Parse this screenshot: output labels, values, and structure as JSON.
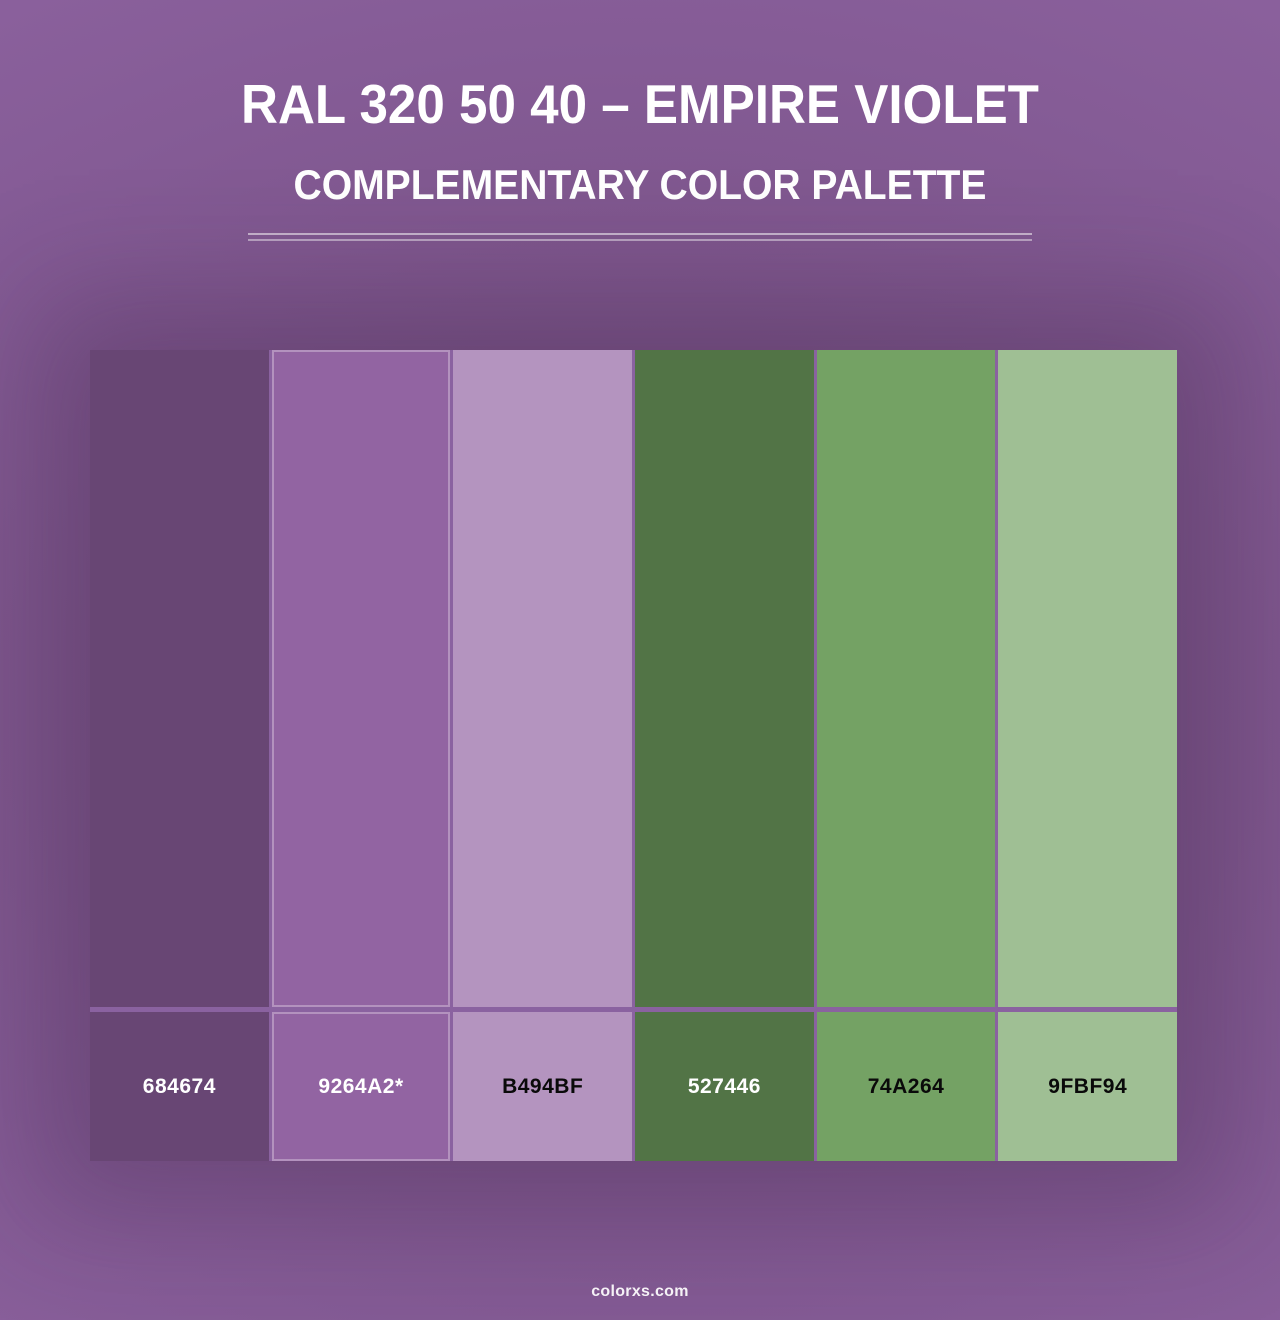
{
  "header": {
    "title": "RAL 320 50 40 – EMPIRE VIOLET",
    "subtitle": "COMPLEMENTARY COLOR PALETTE"
  },
  "palette": {
    "swatches": [
      {
        "hex": "684674",
        "color": "#684674",
        "label_text_color": "#ffffff",
        "starred": false
      },
      {
        "hex": "9264A2*",
        "color": "#9264A2",
        "label_text_color": "#ffffff",
        "starred": true
      },
      {
        "hex": "B494BF",
        "color": "#B494BF",
        "label_text_color": "#0a0a0a",
        "starred": false
      },
      {
        "hex": "527446",
        "color": "#527446",
        "label_text_color": "#ffffff",
        "starred": false
      },
      {
        "hex": "74A264",
        "color": "#74A264",
        "label_text_color": "#0a0a0a",
        "starred": false
      },
      {
        "hex": "9FBF94",
        "color": "#9FBF94",
        "label_text_color": "#0a0a0a",
        "starred": false
      }
    ]
  },
  "footer": {
    "watermark": "colorxs.com"
  }
}
